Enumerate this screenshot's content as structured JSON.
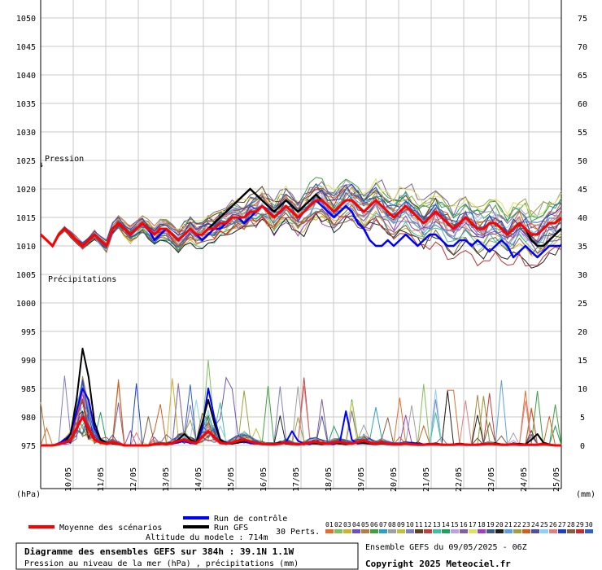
{
  "chart_data": {
    "type": "line",
    "y_left": {
      "unit": "(hPa)",
      "min": 975,
      "max": 1050,
      "ticks": [
        1050,
        1045,
        1040,
        1035,
        1030,
        1025,
        1020,
        1015,
        1010,
        1005,
        1000,
        995,
        990,
        985,
        980,
        975
      ]
    },
    "y_right": {
      "unit": "(mm)",
      "min": 0,
      "max": 75,
      "ticks": [
        75,
        70,
        65,
        60,
        55,
        50,
        45,
        40,
        35,
        30,
        25,
        20,
        15,
        10,
        5,
        0
      ]
    },
    "x_ticks": [
      "10/05",
      "11/05",
      "12/05",
      "13/05",
      "14/05",
      "15/05",
      "16/05",
      "17/05",
      "18/05",
      "19/05",
      "20/05",
      "21/05",
      "22/05",
      "23/05",
      "24/05",
      "25/05"
    ],
    "section_labels": {
      "pressure": "Pression",
      "precip": "Précipitations"
    },
    "legend": {
      "mean": {
        "label": "Moyenne des scénarios",
        "color": "#ff0000"
      },
      "control": {
        "label": "Run de contrôle",
        "color": "#0000ff"
      },
      "gfs": {
        "label": "Run GFS",
        "color": "#000000"
      },
      "perts_label": "30 Perts.",
      "pert_numbers": [
        "01",
        "02",
        "03",
        "04",
        "05",
        "06",
        "07",
        "08",
        "09",
        "10",
        "11",
        "12",
        "13",
        "14",
        "15",
        "16",
        "17",
        "18",
        "19",
        "20",
        "21",
        "22",
        "23",
        "24",
        "25",
        "26",
        "27",
        "28",
        "29",
        "30"
      ],
      "pert_colors": [
        "#e07030",
        "#80c060",
        "#d0b030",
        "#7050c0",
        "#b08040",
        "#40a040",
        "#30a0c0",
        "#a0a0a0",
        "#c0c040",
        "#8080c0",
        "#604020",
        "#c04040",
        "#40c0a0",
        "#20a060",
        "#c0a0e0",
        "#8060a0",
        "#e0e060",
        "#a040c0",
        "#406080",
        "#202020",
        "#60a0e0",
        "#a0a040",
        "#d06020",
        "#5050a0",
        "#90d0f0",
        "#e08080",
        "#2040c0",
        "#806040",
        "#c03030",
        "#3060c0"
      ]
    },
    "altitude": "Altitude du modele : 714m",
    "title": "Diagramme des ensembles GEFS sur 384h : 39.1N 1.1W",
    "subtitle": "Pression au niveau de la mer (hPa) , précipitations (mm)",
    "run_info": "Ensemble GEFS du 09/05/2025 - 06Z",
    "copyright": "Copyright 2025 Meteociel.fr",
    "series_pressure": {
      "mean": [
        1012,
        1011,
        1010,
        1012,
        1013,
        1012,
        1011,
        1010,
        1011,
        1012,
        1011,
        1010,
        1013,
        1014,
        1013,
        1012,
        1013,
        1014,
        1013,
        1012,
        1013,
        1013,
        1012,
        1011,
        1012,
        1013,
        1012,
        1012,
        1013,
        1013,
        1014,
        1014,
        1015,
        1015,
        1015,
        1016,
        1016,
        1017,
        1016,
        1015,
        1016,
        1017,
        1016,
        1015,
        1016,
        1017,
        1018,
        1018,
        1017,
        1016,
        1017,
        1018,
        1018,
        1017,
        1016,
        1017,
        1018,
        1017,
        1016,
        1015,
        1016,
        1017,
        1016,
        1015,
        1014,
        1015,
        1016,
        1015,
        1014,
        1013,
        1014,
        1015,
        1014,
        1013,
        1013,
        1014,
        1014,
        1013,
        1012,
        1013,
        1014,
        1013,
        1012,
        1012,
        1013,
        1014,
        1014,
        1015
      ],
      "control": [
        1012,
        1011,
        1010,
        1012,
        1013,
        1012,
        1011,
        1010,
        1011,
        1012,
        1011,
        1010,
        1013,
        1014,
        1013,
        1012,
        1013,
        1014,
        1013,
        1011,
        1012,
        1013,
        1012,
        1011,
        1012,
        1013,
        1012,
        1011,
        1012,
        1013,
        1013,
        1014,
        1015,
        1015,
        1014,
        1015,
        1016,
        1017,
        1016,
        1015,
        1016,
        1017,
        1016,
        1015,
        1016,
        1017,
        1018,
        1017,
        1016,
        1015,
        1016,
        1017,
        1016,
        1014,
        1013,
        1011,
        1010,
        1010,
        1011,
        1010,
        1011,
        1012,
        1011,
        1010,
        1011,
        1012,
        1012,
        1011,
        1010,
        1010,
        1011,
        1011,
        1010,
        1011,
        1010,
        1009,
        1010,
        1011,
        1010,
        1008,
        1009,
        1010,
        1009,
        1008,
        1009,
        1010,
        1010,
        1010
      ],
      "gfs": [
        1012,
        1011,
        1010,
        1012,
        1013,
        1012,
        1011,
        1010,
        1011,
        1012,
        1011,
        1010,
        1013,
        1014,
        1013,
        1012,
        1013,
        1014,
        1013,
        1012,
        1013,
        1013,
        1012,
        1011,
        1012,
        1013,
        1012,
        1012,
        1013,
        1014,
        1015,
        1016,
        1017,
        1018,
        1019,
        1020,
        1019,
        1018,
        1017,
        1016,
        1017,
        1018,
        1017,
        1016,
        1017,
        1018,
        1019,
        1018,
        1017,
        1016,
        1017,
        1018,
        1018,
        1017,
        1016,
        1017,
        1018,
        1017,
        1016,
        1015,
        1016,
        1017,
        1016,
        1015,
        1014,
        1015,
        1016,
        1015,
        1014,
        1013,
        1014,
        1015,
        1014,
        1013,
        1013,
        1014,
        1014,
        1013,
        1012,
        1013,
        1014,
        1013,
        1011,
        1010,
        1010,
        1011,
        1012,
        1013
      ]
    },
    "series_precip": {
      "mean": [
        0,
        0,
        0,
        0.2,
        0.5,
        1,
        3,
        5,
        3,
        1,
        0.5,
        0.3,
        0.5,
        0.3,
        0,
        0,
        0,
        0,
        0,
        0.2,
        0.3,
        0.2,
        0.4,
        0.8,
        1,
        0.6,
        0.4,
        1.5,
        2.5,
        1.5,
        0.5,
        0.3,
        0.5,
        0.8,
        1,
        0.7,
        0.4,
        0.3,
        0.2,
        0.2,
        0.3,
        0.5,
        0.3,
        0.2,
        0.3,
        0.5,
        0.6,
        0.4,
        0.3,
        0.5,
        0.6,
        0.4,
        0.3,
        0.6,
        0.8,
        0.5,
        0.3,
        0.5,
        0.3,
        0.2,
        0.2,
        0.3,
        0.2,
        0.1,
        0.1,
        0.2,
        0.2,
        0.1,
        0.1,
        0.1,
        0.2,
        0.1,
        0.1,
        0.1,
        0.2,
        0.3,
        0.2,
        0.1,
        0.1,
        0.2,
        0.1,
        0.1,
        0.1,
        0.1,
        0.2,
        0.1,
        0,
        0
      ],
      "control": [
        0,
        0,
        0,
        0.3,
        1,
        2,
        6,
        10,
        8,
        3,
        1,
        0.5,
        0.5,
        0.3,
        0,
        0,
        0,
        0,
        0,
        0.2,
        0.3,
        0.2,
        0.3,
        0.5,
        0.8,
        0.4,
        0.3,
        3,
        10,
        5,
        1,
        0.5,
        0.3,
        0.5,
        0.6,
        0.4,
        0.3,
        0.2,
        0.2,
        0.2,
        0.3,
        0.6,
        2.5,
        0.8,
        0.3,
        0.2,
        0.5,
        0.4,
        0.3,
        0.2,
        0.6,
        6,
        1,
        0.3,
        0.4,
        0.3,
        0.2,
        0.6,
        0.3,
        0.3,
        0.2,
        0.3,
        0.5,
        0.3,
        0.2,
        0.3,
        0.2,
        0.1,
        0.1,
        0.2,
        0.3,
        0.2,
        0.1,
        0.2,
        0.3,
        0.4,
        0.2,
        0.2,
        0.1,
        0.2,
        0.1,
        0.2,
        0.1,
        0.1,
        0.3,
        0.1,
        0,
        0
      ],
      "gfs": [
        0,
        0,
        0,
        0.2,
        0.5,
        2,
        8,
        17,
        12,
        4,
        1,
        0.5,
        0.3,
        0.2,
        0,
        0,
        0,
        0,
        0,
        0.2,
        0.2,
        0.3,
        0.5,
        1,
        2,
        1,
        0.5,
        4,
        8,
        4,
        1,
        0.4,
        0.3,
        0.5,
        0.8,
        0.6,
        0.5,
        0.3,
        0.2,
        0.3,
        0.5,
        0.3,
        0.2,
        0.2,
        0.3,
        0.4,
        0.3,
        0.2,
        0.3,
        0.4,
        0.3,
        0.2,
        0.3,
        0.5,
        0.4,
        0.3,
        0.2,
        0.3,
        0.2,
        0.2,
        0.2,
        0.3,
        0.2,
        0.1,
        0.1,
        0.2,
        0.3,
        0.2,
        0.1,
        0.2,
        0.3,
        0.2,
        0.1,
        0.1,
        0.2,
        0.3,
        0.4,
        0.2,
        0.1,
        0.2,
        0.3,
        0.2,
        1,
        2,
        0.5,
        0.2,
        0,
        0
      ]
    }
  }
}
